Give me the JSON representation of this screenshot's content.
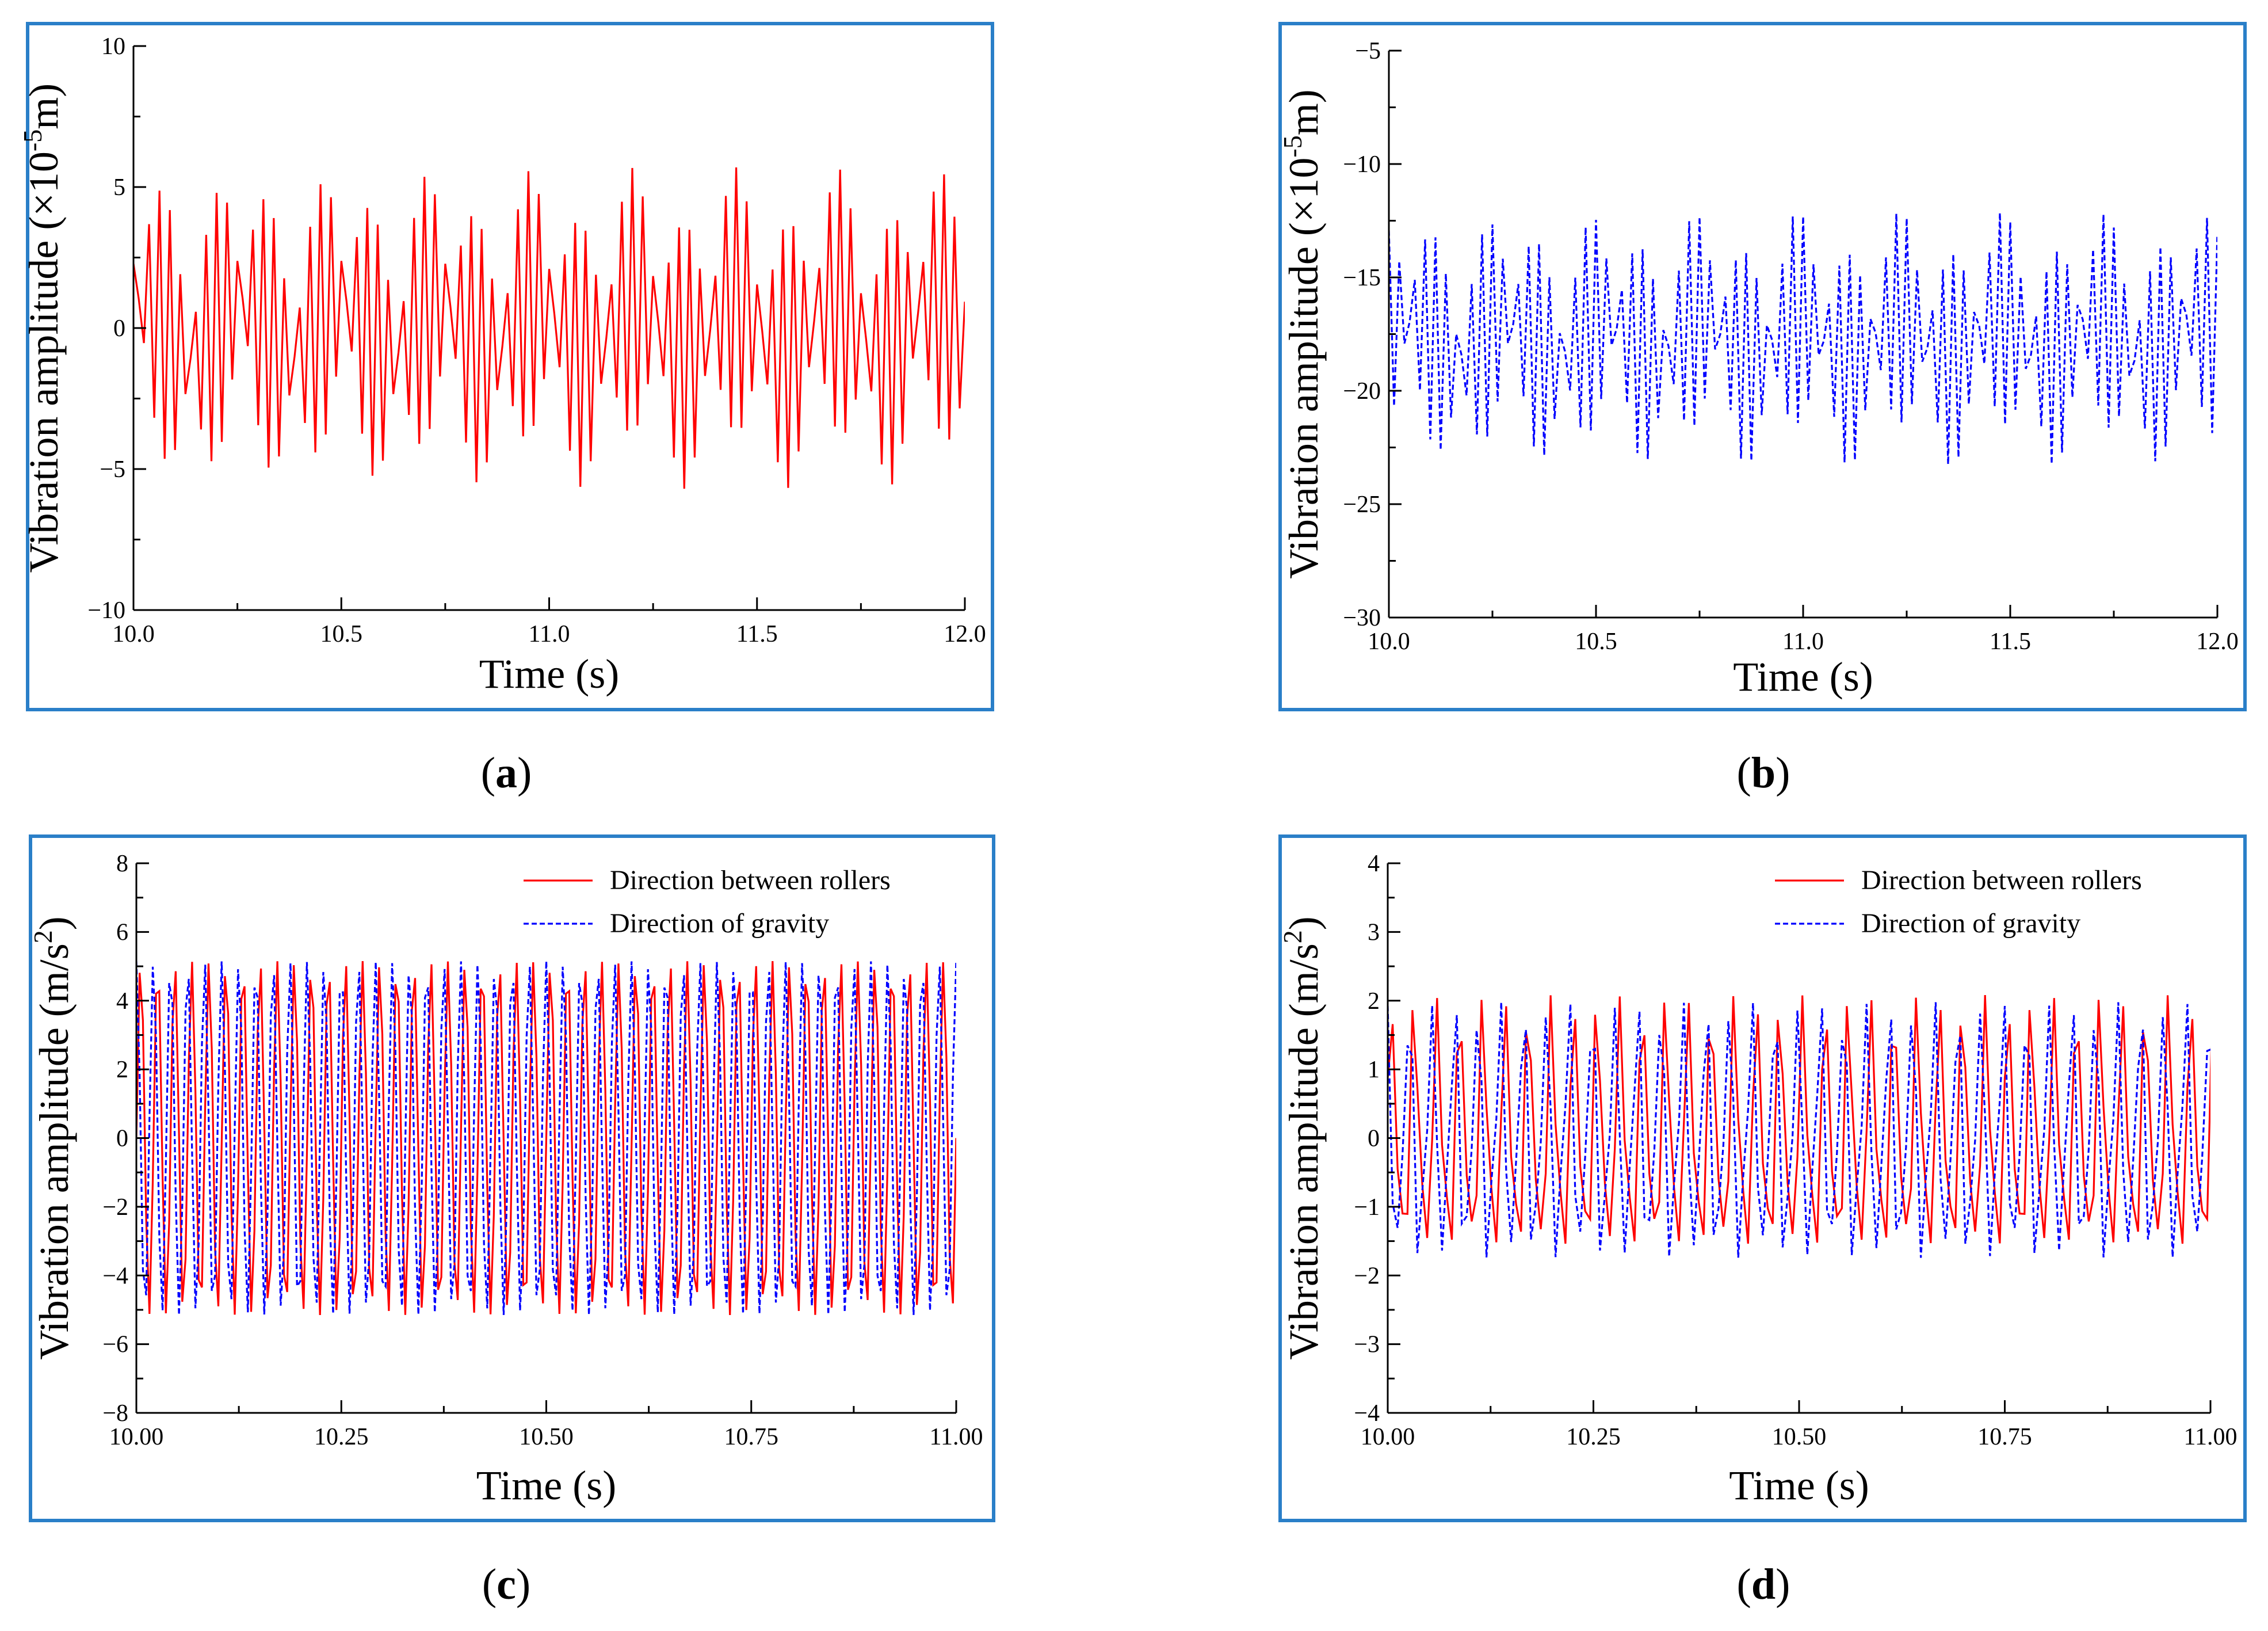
{
  "colors": {
    "frame": "#2a7fc8",
    "red": "#ff0000",
    "blue": "#0000ff",
    "axis": "#000000"
  },
  "panels": [
    {
      "id": "a",
      "caption_open": "(",
      "caption_letter": "a",
      "caption_close": ")",
      "chart_data": {
        "type": "line",
        "xlabel": "Time (s)",
        "ylabel_main": "Vibration amplitude (×10",
        "ylabel_sup": "-5",
        "ylabel_tail": "m)",
        "xlim": [
          10.0,
          12.0
        ],
        "ylim": [
          -10,
          10
        ],
        "xticks": [
          10.0,
          10.5,
          11.0,
          11.5,
          12.0
        ],
        "xtick_labels": [
          "10.0",
          "10.5",
          "11.0",
          "11.5",
          "12.0"
        ],
        "yticks": [
          -10,
          -5,
          0,
          5,
          10
        ],
        "ytick_labels": [
          "−10",
          "−5",
          "0",
          "5",
          "10"
        ],
        "grid": false,
        "legend": null,
        "series": [
          {
            "style": "solid",
            "color": "#ff0000",
            "generator": {
              "t0": 10.0,
              "t1": 12.0,
              "dt": 0.0125,
              "offset": 0,
              "components": [
                {
                  "amp": 4.7,
                  "freq": 36.0,
                  "phase": 0.3
                },
                {
                  "amp": 1.0,
                  "freq": 4.2,
                  "phase": 1.1
                }
              ]
            }
          }
        ]
      }
    },
    {
      "id": "b",
      "caption_open": "(",
      "caption_letter": "b",
      "caption_close": ")",
      "chart_data": {
        "type": "line",
        "xlabel": "Time (s)",
        "ylabel_main": "Vibration amplitude (×10",
        "ylabel_sup": "-5",
        "ylabel_tail": "m)",
        "xlim": [
          10.0,
          12.0
        ],
        "ylim": [
          -30,
          -5
        ],
        "xticks": [
          10.0,
          10.5,
          11.0,
          11.5,
          12.0
        ],
        "xtick_labels": [
          "10.0",
          "10.5",
          "11.0",
          "11.5",
          "12.0"
        ],
        "yticks": [
          -30,
          -25,
          -20,
          -15,
          -10,
          -5
        ],
        "ytick_labels": [
          "−30",
          "−25",
          "−20",
          "−15",
          "−10",
          "−5"
        ],
        "grid": false,
        "legend": null,
        "series": [
          {
            "style": "dashed",
            "color": "#0000ff",
            "generator": {
              "t0": 10.0,
              "t1": 12.0,
              "dt": 0.0125,
              "offset": -17.7,
              "components": [
                {
                  "amp": 4.7,
                  "freq": 36.0,
                  "phase": 1.2
                },
                {
                  "amp": 1.0,
                  "freq": 4.2,
                  "phase": 0.4
                }
              ]
            }
          }
        ]
      }
    },
    {
      "id": "c",
      "caption_open": "(",
      "caption_letter": "c",
      "caption_close": ")",
      "chart_data": {
        "type": "line",
        "xlabel": "Time (s)",
        "ylabel_main": "Vibration amplitude (m/s",
        "ylabel_sup": "2",
        "ylabel_tail": ")",
        "xlim": [
          10.0,
          11.0
        ],
        "ylim": [
          -8,
          8
        ],
        "xticks": [
          10.0,
          10.25,
          10.5,
          10.75,
          11.0
        ],
        "xtick_labels": [
          "10.00",
          "10.25",
          "10.50",
          "10.75",
          "11.00"
        ],
        "yticks": [
          -8,
          -6,
          -4,
          -2,
          0,
          2,
          4,
          6,
          8
        ],
        "ytick_labels": [
          "−8",
          "−6",
          "−4",
          "−2",
          "0",
          "2",
          "4",
          "6",
          "8"
        ],
        "grid": false,
        "legend": "top-right",
        "series": [
          {
            "name": "Direction between rollers",
            "style": "solid",
            "color": "#ff0000",
            "generator": {
              "t0": 10.0,
              "t1": 11.0,
              "dt": 0.004,
              "offset": 0,
              "components": [
                {
                  "amp": 5.15,
                  "freq": 48.0,
                  "phase": 0.0
                }
              ]
            }
          },
          {
            "name": "Direction of gravity",
            "style": "dashed",
            "color": "#0000ff",
            "generator": {
              "t0": 10.0,
              "t1": 11.0,
              "dt": 0.004,
              "offset": 0,
              "components": [
                {
                  "amp": 5.15,
                  "freq": 48.0,
                  "phase": 1.57
                }
              ]
            }
          }
        ]
      }
    },
    {
      "id": "d",
      "caption_open": "(",
      "caption_letter": "d",
      "caption_close": ")",
      "chart_data": {
        "type": "line",
        "xlabel": "Time (s)",
        "ylabel_main": "Vibration amplitude (m/s",
        "ylabel_sup": "2",
        "ylabel_tail": ")",
        "xlim": [
          10.0,
          11.0
        ],
        "ylim": [
          -4,
          4
        ],
        "xticks": [
          10.0,
          10.25,
          10.5,
          10.75,
          11.0
        ],
        "xtick_labels": [
          "10.00",
          "10.25",
          "10.50",
          "10.75",
          "11.00"
        ],
        "yticks": [
          -4,
          -3,
          -2,
          -1,
          0,
          1,
          2,
          3,
          4
        ],
        "ytick_labels": [
          "−4",
          "−3",
          "−2",
          "−1",
          "0",
          "1",
          "2",
          "3",
          "4"
        ],
        "grid": false,
        "legend": "top-right",
        "series": [
          {
            "name": "Direction between rollers",
            "style": "solid",
            "color": "#ff0000",
            "generator": {
              "t0": 10.0,
              "t1": 11.0,
              "dt": 0.006,
              "offset": 0,
              "components": [
                {
                  "amp": 1.6,
                  "freq": 36.0,
                  "phase": 0.5
                },
                {
                  "amp": 0.55,
                  "freq": 72.0,
                  "phase": 0.2
                }
              ]
            }
          },
          {
            "name": "Direction of gravity",
            "style": "dashed",
            "color": "#0000ff",
            "generator": {
              "t0": 10.0,
              "t1": 11.0,
              "dt": 0.006,
              "offset": 0,
              "components": [
                {
                  "amp": 1.6,
                  "freq": 36.0,
                  "phase": 2.1
                },
                {
                  "amp": 0.55,
                  "freq": 72.0,
                  "phase": 1.4
                }
              ]
            }
          }
        ]
      }
    }
  ]
}
